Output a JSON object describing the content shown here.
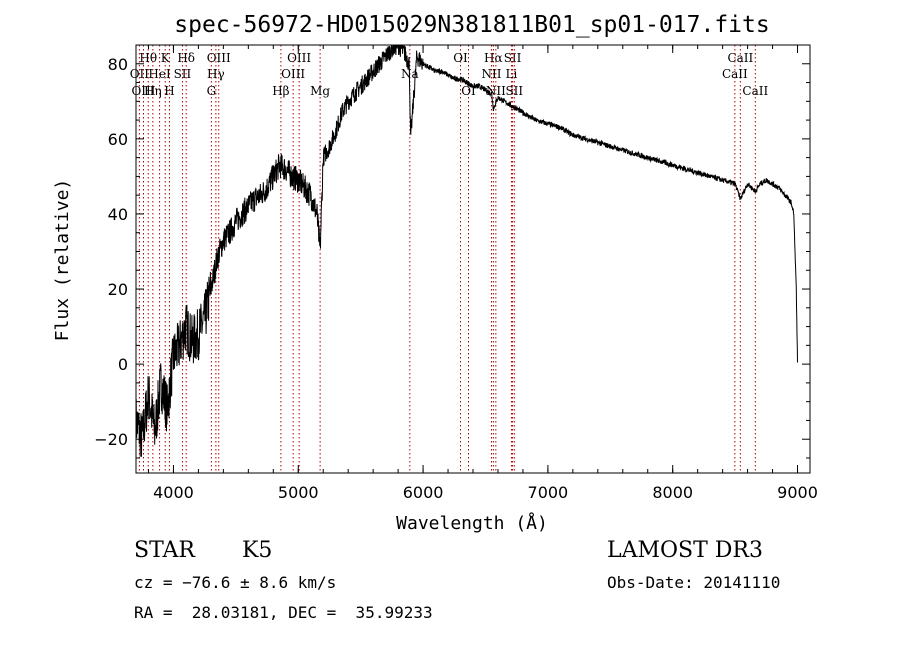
{
  "chart_data": {
    "type": "line",
    "title": "spec-56972-HD015029N381811B01_sp01-017.fits",
    "xlabel": "Wavelength (Å)",
    "ylabel": "Flux (relative)",
    "xlim": [
      3700,
      9100
    ],
    "ylim": [
      -29,
      85
    ],
    "xticks": [
      4000,
      5000,
      6000,
      7000,
      8000,
      9000
    ],
    "yticks": [
      -20,
      0,
      20,
      40,
      60,
      80
    ],
    "grid": false,
    "series": [
      {
        "name": "spectrum",
        "x": [
          3700,
          3750,
          3800,
          3850,
          3900,
          3950,
          4000,
          4050,
          4100,
          4150,
          4200,
          4250,
          4300,
          4350,
          4400,
          4450,
          4500,
          4550,
          4600,
          4650,
          4700,
          4750,
          4800,
          4850,
          4900,
          4950,
          5000,
          5050,
          5100,
          5150,
          5175,
          5200,
          5250,
          5300,
          5350,
          5400,
          5450,
          5500,
          5550,
          5600,
          5650,
          5700,
          5750,
          5800,
          5850,
          5890,
          5900,
          5950,
          6000,
          6050,
          6100,
          6150,
          6200,
          6250,
          6300,
          6350,
          6400,
          6450,
          6500,
          6550,
          6563,
          6600,
          6650,
          6700,
          6800,
          6900,
          7000,
          7100,
          7200,
          7300,
          7400,
          7500,
          7600,
          7700,
          7800,
          7900,
          8000,
          8100,
          8200,
          8300,
          8400,
          8500,
          8542,
          8600,
          8662,
          8700,
          8750,
          8800,
          8850,
          8900,
          8950,
          8970,
          8990,
          9000
        ],
        "y": [
          -15,
          -20,
          -8,
          -18,
          -5,
          -12,
          2,
          5,
          10,
          6,
          8,
          12,
          20,
          28,
          33,
          35,
          38,
          40,
          42,
          44,
          45,
          47,
          50,
          53,
          52,
          50,
          49,
          47,
          45,
          40,
          30,
          55,
          58,
          62,
          67,
          70,
          72,
          74,
          76,
          78,
          80,
          82,
          84,
          85,
          83,
          80,
          60,
          82,
          80,
          79,
          78,
          78,
          77,
          76,
          76,
          75,
          74,
          74,
          73,
          72,
          68,
          71,
          70,
          69,
          67,
          65,
          64,
          63,
          61,
          60,
          59,
          58,
          57,
          56,
          55,
          54,
          53,
          52,
          51,
          50,
          49,
          48,
          44,
          48,
          46,
          48,
          49,
          48,
          47,
          45,
          43,
          40,
          20,
          0
        ]
      }
    ],
    "lines": [
      {
        "label": "Hθ",
        "x": 3798,
        "row": 1
      },
      {
        "label": "OII",
        "x": 3727,
        "row": 2
      },
      {
        "label": "OIII",
        "x": 3760,
        "row": 3
      },
      {
        "label": "K",
        "x": 3934,
        "row": 1
      },
      {
        "label": "HeI",
        "x": 3889,
        "row": 2
      },
      {
        "label": "Hη",
        "x": 3835,
        "row": 3
      },
      {
        "label": "H",
        "x": 3968,
        "row": 3
      },
      {
        "label": "SII",
        "x": 4072,
        "row": 2
      },
      {
        "label": "Hδ",
        "x": 4102,
        "row": 1
      },
      {
        "label": "OIII",
        "x": 4363,
        "row": 1
      },
      {
        "label": "Hγ",
        "x": 4340,
        "row": 2
      },
      {
        "label": "G",
        "x": 4304,
        "row": 3
      },
      {
        "label": "Hβ",
        "x": 4861,
        "row": 3
      },
      {
        "label": "OIII",
        "x": 5007,
        "row": 1
      },
      {
        "label": "OIII",
        "x": 4959,
        "row": 2
      },
      {
        "label": "Mg",
        "x": 5175,
        "row": 3
      },
      {
        "label": "Na",
        "x": 5894,
        "row": 2
      },
      {
        "label": "OI",
        "x": 6300,
        "row": 1
      },
      {
        "label": "OI",
        "x": 6364,
        "row": 3
      },
      {
        "label": "Hα",
        "x": 6563,
        "row": 1
      },
      {
        "label": "NII",
        "x": 6548,
        "row": 2
      },
      {
        "label": "NII",
        "x": 6583,
        "row": 3
      },
      {
        "label": "SII",
        "x": 6717,
        "row": 1
      },
      {
        "label": "Li",
        "x": 6708,
        "row": 2
      },
      {
        "label": "SII",
        "x": 6731,
        "row": 3
      },
      {
        "label": "CaII",
        "x": 8542,
        "row": 1
      },
      {
        "label": "CaII",
        "x": 8498,
        "row": 2
      },
      {
        "label": "CaII",
        "x": 8662,
        "row": 3
      }
    ]
  },
  "info": {
    "object_class": "STAR",
    "subclass": "K5",
    "redshift": "cz = −76.6 ± 8.6 km/s",
    "coords": "RA =  28.03181, DEC =  35.99233",
    "survey": "LAMOST DR3",
    "obs_date": "Obs-Date: 20141110"
  }
}
